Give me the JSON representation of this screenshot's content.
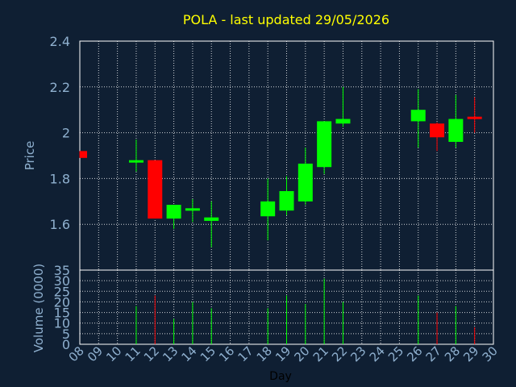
{
  "chart_data": {
    "type": "candlestick",
    "title": "POLA - last updated 29/05/2026",
    "xlabel": "Day",
    "ylabel_price": "Price",
    "ylabel_volume": "Volume (0000)",
    "x_ticks": [
      "08",
      "09",
      "10",
      "11",
      "12",
      "13",
      "14",
      "15",
      "16",
      "17",
      "18",
      "19",
      "20",
      "21",
      "22",
      "23",
      "24",
      "25",
      "26",
      "27",
      "28",
      "29",
      "30"
    ],
    "price_ticks": [
      "1.6",
      "1.8",
      "2",
      "2.2",
      "2.4"
    ],
    "volume_ticks": [
      "0",
      "5",
      "10",
      "15",
      "20",
      "25",
      "30",
      "35"
    ],
    "price_range": [
      1.4,
      2.4
    ],
    "volume_range": [
      0,
      35
    ],
    "grid": true,
    "colors": {
      "up": "#00ff00",
      "down": "#ff0000",
      "title": "#ffff00",
      "axis_text": "#8fb0cf",
      "grid": "#ffffff"
    },
    "candles": [
      {
        "day": 8,
        "open": 1.92,
        "high": 1.92,
        "low": 1.89,
        "close": 1.89,
        "volume": 0
      },
      {
        "day": 11,
        "open": 1.875,
        "high": 1.97,
        "low": 1.83,
        "close": 1.88,
        "volume": 18
      },
      {
        "day": 12,
        "open": 1.88,
        "high": 1.88,
        "low": 1.625,
        "close": 1.625,
        "volume": 23
      },
      {
        "day": 13,
        "open": 1.625,
        "high": 1.685,
        "low": 1.58,
        "close": 1.685,
        "volume": 12
      },
      {
        "day": 14,
        "open": 1.665,
        "high": 1.71,
        "low": 1.61,
        "close": 1.67,
        "volume": 20
      },
      {
        "day": 15,
        "open": 1.615,
        "high": 1.7,
        "low": 1.5,
        "close": 1.63,
        "volume": 17
      },
      {
        "day": 18,
        "open": 1.635,
        "high": 1.8,
        "low": 1.53,
        "close": 1.7,
        "volume": 17
      },
      {
        "day": 19,
        "open": 1.66,
        "high": 1.81,
        "low": 1.64,
        "close": 1.745,
        "volume": 23
      },
      {
        "day": 20,
        "open": 1.7,
        "high": 1.935,
        "low": 1.685,
        "close": 1.865,
        "volume": 19
      },
      {
        "day": 21,
        "open": 1.85,
        "high": 2.05,
        "low": 1.82,
        "close": 2.05,
        "volume": 31
      },
      {
        "day": 22,
        "open": 2.04,
        "high": 2.2,
        "low": 2.025,
        "close": 2.06,
        "volume": 20
      },
      {
        "day": 26,
        "open": 2.05,
        "high": 2.19,
        "low": 1.935,
        "close": 2.1,
        "volume": 23
      },
      {
        "day": 27,
        "open": 2.04,
        "high": 2.045,
        "low": 1.92,
        "close": 1.98,
        "volume": 15
      },
      {
        "day": 28,
        "open": 1.96,
        "high": 2.165,
        "low": 1.935,
        "close": 2.06,
        "volume": 18
      },
      {
        "day": 29,
        "open": 2.07,
        "high": 2.155,
        "low": 2.0,
        "close": 2.06,
        "volume": 8
      }
    ]
  }
}
